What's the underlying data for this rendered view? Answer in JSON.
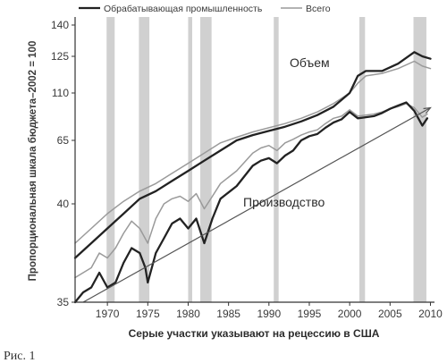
{
  "chart_data": {
    "type": "line",
    "legend": {
      "placement": "top",
      "items": [
        {
          "name": "Обрабатывающая промышленность",
          "color": "#222222"
        },
        {
          "name": "Всего",
          "color": "#9a9a9a"
        }
      ]
    },
    "ylabel": "Пропорциональная шкала бюджета–2002 = 100",
    "xlabel": "Серые участки указывают на рецессию в США",
    "caption": "Рис. 1",
    "y_ticks": [
      "35",
      "40",
      "65",
      "110",
      "125",
      "140"
    ],
    "x_ticks": [
      "1970",
      "1975",
      "1980",
      "1985",
      "1990",
      "1995",
      "2000",
      "2005",
      "2010"
    ],
    "xlim": [
      1966,
      2010.5
    ],
    "recessions": [
      [
        1969.9,
        1970.9
      ],
      [
        1973.9,
        1975.2
      ],
      [
        1980.0,
        1980.5
      ],
      [
        1981.5,
        1982.9
      ],
      [
        1990.6,
        1991.2
      ],
      [
        2001.2,
        2001.9
      ],
      [
        2007.9,
        2009.5
      ]
    ],
    "annotations": {
      "volume": "Объем",
      "production": "Производство"
    },
    "series": [
      {
        "name": "Всего",
        "group": "volume",
        "color": "#9a9a9a",
        "points": [
          [
            1966,
            32
          ],
          [
            1968,
            35
          ],
          [
            1970,
            38
          ],
          [
            1972,
            41
          ],
          [
            1974,
            45
          ],
          [
            1976,
            48
          ],
          [
            1978,
            52
          ],
          [
            1980,
            56
          ],
          [
            1982,
            60
          ],
          [
            1984,
            64
          ],
          [
            1986,
            68
          ],
          [
            1988,
            73
          ],
          [
            1990,
            77
          ],
          [
            1992,
            81
          ],
          [
            1994,
            86
          ],
          [
            1996,
            92
          ],
          [
            1998,
            100
          ],
          [
            2000,
            110
          ],
          [
            2001,
            114
          ],
          [
            2002,
            117
          ],
          [
            2004,
            118
          ],
          [
            2006,
            120
          ],
          [
            2008,
            123
          ],
          [
            2009,
            121
          ],
          [
            2010,
            120
          ]
        ]
      },
      {
        "name": "Обрабатывающая промышленность",
        "group": "volume",
        "color": "#222222",
        "points": [
          [
            1966,
            29
          ],
          [
            1968,
            32
          ],
          [
            1970,
            35
          ],
          [
            1972,
            38
          ],
          [
            1974,
            42
          ],
          [
            1976,
            45
          ],
          [
            1978,
            49
          ],
          [
            1980,
            53
          ],
          [
            1982,
            57
          ],
          [
            1984,
            61
          ],
          [
            1986,
            65
          ],
          [
            1988,
            70
          ],
          [
            1990,
            74
          ],
          [
            1992,
            78
          ],
          [
            1994,
            83
          ],
          [
            1996,
            89
          ],
          [
            1998,
            97
          ],
          [
            2000,
            110
          ],
          [
            2001,
            117
          ],
          [
            2002,
            119
          ],
          [
            2004,
            119
          ],
          [
            2006,
            122
          ],
          [
            2008,
            127
          ],
          [
            2009,
            125
          ],
          [
            2010,
            124
          ]
        ]
      },
      {
        "name": "Всего",
        "group": "production",
        "color": "#9a9a9a",
        "points": [
          [
            1966,
            25
          ],
          [
            1968,
            27
          ],
          [
            1969,
            30
          ],
          [
            1970,
            29
          ],
          [
            1971,
            31
          ],
          [
            1972,
            34
          ],
          [
            1973,
            36.5
          ],
          [
            1974,
            35
          ],
          [
            1975,
            32
          ],
          [
            1976,
            37
          ],
          [
            1977,
            40
          ],
          [
            1978,
            42
          ],
          [
            1979,
            43
          ],
          [
            1980,
            41
          ],
          [
            1981,
            44
          ],
          [
            1982,
            39
          ],
          [
            1983,
            43
          ],
          [
            1984,
            48
          ],
          [
            1986,
            53
          ],
          [
            1988,
            60
          ],
          [
            1989,
            62
          ],
          [
            1990,
            63
          ],
          [
            1991,
            61
          ],
          [
            1992,
            64
          ],
          [
            1993,
            66
          ],
          [
            1994,
            70
          ],
          [
            1995,
            73
          ],
          [
            1996,
            75
          ],
          [
            1997,
            81
          ],
          [
            1998,
            86
          ],
          [
            1999,
            88
          ],
          [
            2000,
            94
          ],
          [
            2001,
            88
          ],
          [
            2002,
            89
          ],
          [
            2003,
            90
          ],
          [
            2004,
            92
          ],
          [
            2005,
            95
          ],
          [
            2006,
            97
          ],
          [
            2007,
            100
          ],
          [
            2008,
            96
          ],
          [
            2009,
            87
          ],
          [
            2009.6,
            90
          ]
        ]
      },
      {
        "name": "Обрабатывающая промышленность",
        "group": "production",
        "color": "#222222",
        "points": [
          [
            1966,
            20
          ],
          [
            1967,
            22
          ],
          [
            1968,
            23
          ],
          [
            1969,
            26
          ],
          [
            1970,
            23
          ],
          [
            1971,
            24
          ],
          [
            1972,
            28
          ],
          [
            1973,
            31
          ],
          [
            1974,
            30
          ],
          [
            1974.7,
            27
          ],
          [
            1975,
            24
          ],
          [
            1976,
            30
          ],
          [
            1977,
            33
          ],
          [
            1978,
            36
          ],
          [
            1979,
            37
          ],
          [
            1980,
            35
          ],
          [
            1981,
            37
          ],
          [
            1982,
            32
          ],
          [
            1983,
            37
          ],
          [
            1984,
            42
          ],
          [
            1986,
            47
          ],
          [
            1988,
            55
          ],
          [
            1989,
            57
          ],
          [
            1990,
            58
          ],
          [
            1991,
            56
          ],
          [
            1992,
            59
          ],
          [
            1993,
            61
          ],
          [
            1994,
            65
          ],
          [
            1995,
            69
          ],
          [
            1996,
            71
          ],
          [
            1997,
            77
          ],
          [
            1998,
            82
          ],
          [
            1999,
            85
          ],
          [
            2000,
            92
          ],
          [
            2001,
            86
          ],
          [
            2002,
            87
          ],
          [
            2003,
            88
          ],
          [
            2004,
            91
          ],
          [
            2005,
            95
          ],
          [
            2006,
            98
          ],
          [
            2007,
            101
          ],
          [
            2008,
            93
          ],
          [
            2009,
            79
          ],
          [
            2009.6,
            86
          ]
        ]
      }
    ],
    "trend": {
      "from": [
        1967,
        20
      ],
      "to": [
        2010,
        96
      ]
    }
  }
}
